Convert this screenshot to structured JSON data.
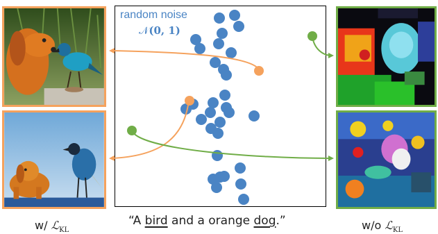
{
  "noise_label": "random noise",
  "dist_label": {
    "N": "𝒩",
    "args": "(0, 1)"
  },
  "left_caption": {
    "prefix": "w/",
    "L": "ℒ",
    "sub": "KL"
  },
  "right_caption": {
    "prefix": "w/o",
    "L": "ℒ",
    "sub": "KL"
  },
  "prompt": {
    "open": "“A ",
    "word1": "bird",
    "middle": " and a orange ",
    "word2": "dog",
    "close": ".”"
  },
  "colors": {
    "noise_dot": "#4a84c4",
    "orange": "#f5a25d",
    "green": "#70ad47"
  },
  "images": [
    {
      "name": "dog-and-bird-photo",
      "side": "left"
    },
    {
      "name": "dog-and-bird-photo-2",
      "side": "left"
    },
    {
      "name": "noisy-colorful-image",
      "side": "right"
    },
    {
      "name": "noisy-colorful-image-2",
      "side": "right"
    }
  ]
}
